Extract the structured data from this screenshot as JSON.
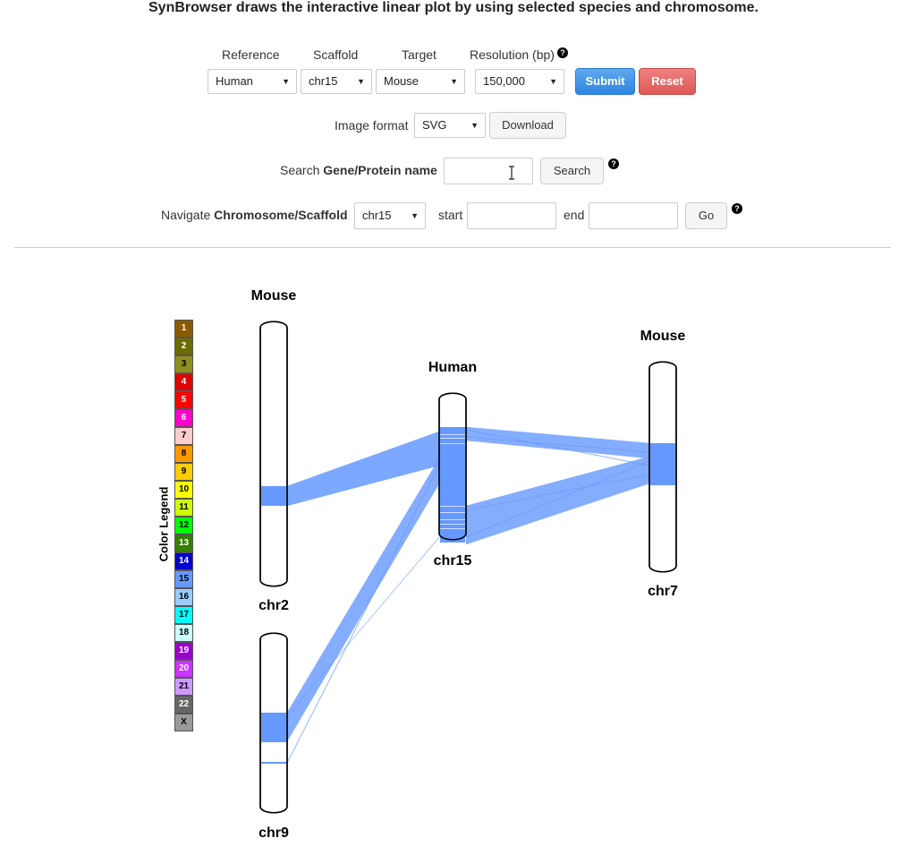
{
  "headline": "SynBrowser draws the interactive linear plot by using selected species and chromosome.",
  "controls": {
    "reference_label": "Reference",
    "scaffold_label": "Scaffold",
    "target_label": "Target",
    "resolution_label": "Resolution (bp)",
    "reference_value": "Human",
    "scaffold_value": "chr15",
    "target_value": "Mouse",
    "resolution_value": "150,000",
    "submit_label": "Submit",
    "reset_label": "Reset",
    "image_format_label": "Image format",
    "image_format_value": "SVG",
    "download_label": "Download",
    "search_prefix": "Search ",
    "search_bold": "Gene/Protein name",
    "search_button": "Search",
    "search_value": "",
    "navigate_prefix": "Navigate ",
    "navigate_bold": "Chromosome/Scaffold",
    "navigate_value": "chr15",
    "start_label": "start",
    "end_label": "end",
    "start_value": "",
    "end_value": "",
    "go_label": "Go",
    "help_glyph": "?"
  },
  "legend": {
    "title": "Color Legend",
    "items": [
      {
        "label": "1",
        "color": "#8b5a00",
        "text": "#fff"
      },
      {
        "label": "2",
        "color": "#6b6b00",
        "text": "#fff"
      },
      {
        "label": "3",
        "color": "#8f8f1f",
        "text": "#000"
      },
      {
        "label": "4",
        "color": "#e00000",
        "text": "#fff"
      },
      {
        "label": "5",
        "color": "#ff0000",
        "text": "#fff"
      },
      {
        "label": "6",
        "color": "#ff00cc",
        "text": "#fff"
      },
      {
        "label": "7",
        "color": "#ffcccc",
        "text": "#000"
      },
      {
        "label": "8",
        "color": "#ff9900",
        "text": "#000"
      },
      {
        "label": "9",
        "color": "#ffcc00",
        "text": "#000"
      },
      {
        "label": "10",
        "color": "#ffff00",
        "text": "#000"
      },
      {
        "label": "11",
        "color": "#ccff00",
        "text": "#000"
      },
      {
        "label": "12",
        "color": "#00ff00",
        "text": "#000"
      },
      {
        "label": "13",
        "color": "#358000",
        "text": "#fff"
      },
      {
        "label": "14",
        "color": "#0000cc",
        "text": "#fff"
      },
      {
        "label": "15",
        "color": "#6699ff",
        "text": "#000"
      },
      {
        "label": "16",
        "color": "#99ccff",
        "text": "#000"
      },
      {
        "label": "17",
        "color": "#00ffff",
        "text": "#000"
      },
      {
        "label": "18",
        "color": "#ccffff",
        "text": "#000"
      },
      {
        "label": "19",
        "color": "#9900cc",
        "text": "#fff"
      },
      {
        "label": "20",
        "color": "#cc33ff",
        "text": "#fff"
      },
      {
        "label": "21",
        "color": "#cc99ff",
        "text": "#000"
      },
      {
        "label": "22",
        "color": "#666666",
        "text": "#fff"
      },
      {
        "label": "X",
        "color": "#999999",
        "text": "#000"
      }
    ]
  },
  "plot": {
    "link_color": "#6699ff",
    "left_species": "Mouse",
    "center_species": "Human",
    "right_species": "Mouse",
    "left_top_chr": "chr2",
    "left_bottom_chr": "chr9",
    "center_chr": "chr15",
    "right_chr": "chr7"
  }
}
